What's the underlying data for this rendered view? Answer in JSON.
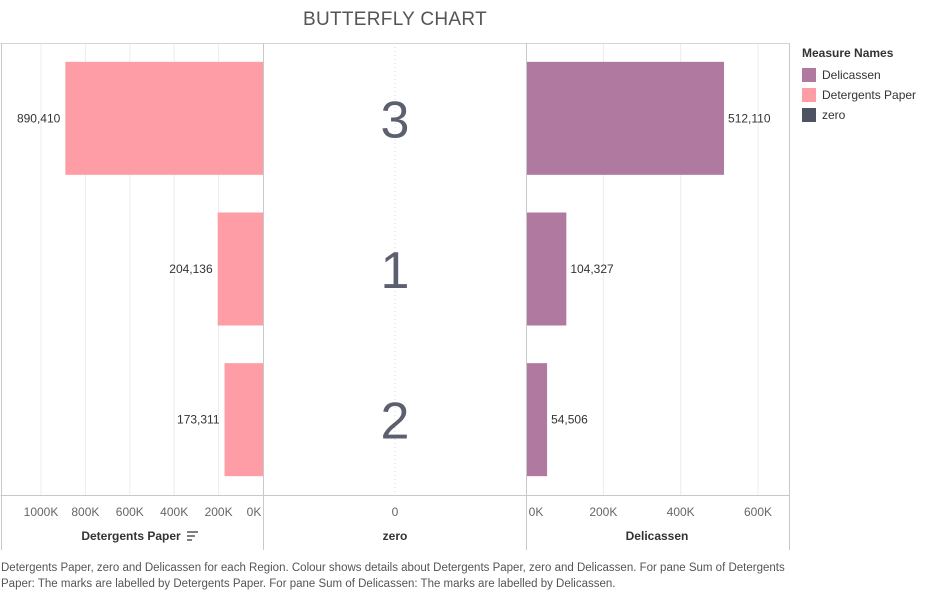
{
  "title": "BUTTERFLY CHART",
  "legend": {
    "title": "Measure Names",
    "items": [
      {
        "label": "Delicassen",
        "color": "#b0799f"
      },
      {
        "label": "Detergents Paper",
        "color": "#ff9da6"
      },
      {
        "label": "zero",
        "color": "#4e5362"
      }
    ]
  },
  "caption": "Detergents Paper, zero and Delicassen for each Region.  Colour shows details about Detergents Paper, zero and Delicassen.  For pane Sum of Detergents Paper:  The marks are labelled by Detergents Paper.  For pane Sum of Delicassen:  The marks are labelled by Delicassen.",
  "chart_data": {
    "type": "bar",
    "title": "BUTTERFLY CHART",
    "categories": [
      "3",
      "1",
      "2"
    ],
    "series": [
      {
        "name": "Detergents Paper",
        "values": [
          890410,
          204136,
          173311
        ],
        "labels": [
          "890,410",
          "204,136",
          "173,311"
        ],
        "color": "#ff9da6"
      },
      {
        "name": "zero",
        "values": [
          0,
          0,
          0
        ],
        "color": "#4e5362"
      },
      {
        "name": "Delicassen",
        "values": [
          512110,
          104327,
          54506
        ],
        "labels": [
          "512,110",
          "104,327",
          "54,506"
        ],
        "color": "#b0799f"
      }
    ],
    "panes": [
      {
        "xlabel": "Detergents Paper",
        "xlim": [
          0,
          1000000
        ],
        "reversed": true,
        "ticks": [
          1000000,
          800000,
          600000,
          400000,
          200000,
          0
        ],
        "tick_labels": [
          "1000K",
          "800K",
          "600K",
          "400K",
          "200K",
          "0K"
        ]
      },
      {
        "xlabel": "zero",
        "ticks": [
          0
        ],
        "tick_labels": [
          "0"
        ]
      },
      {
        "xlabel": "Delicassen",
        "xlim": [
          0,
          600000
        ],
        "ticks": [
          0,
          200000,
          400000,
          600000
        ],
        "tick_labels": [
          "0K",
          "200K",
          "400K",
          "600K"
        ]
      }
    ],
    "grid": true,
    "legend_position": "right"
  }
}
